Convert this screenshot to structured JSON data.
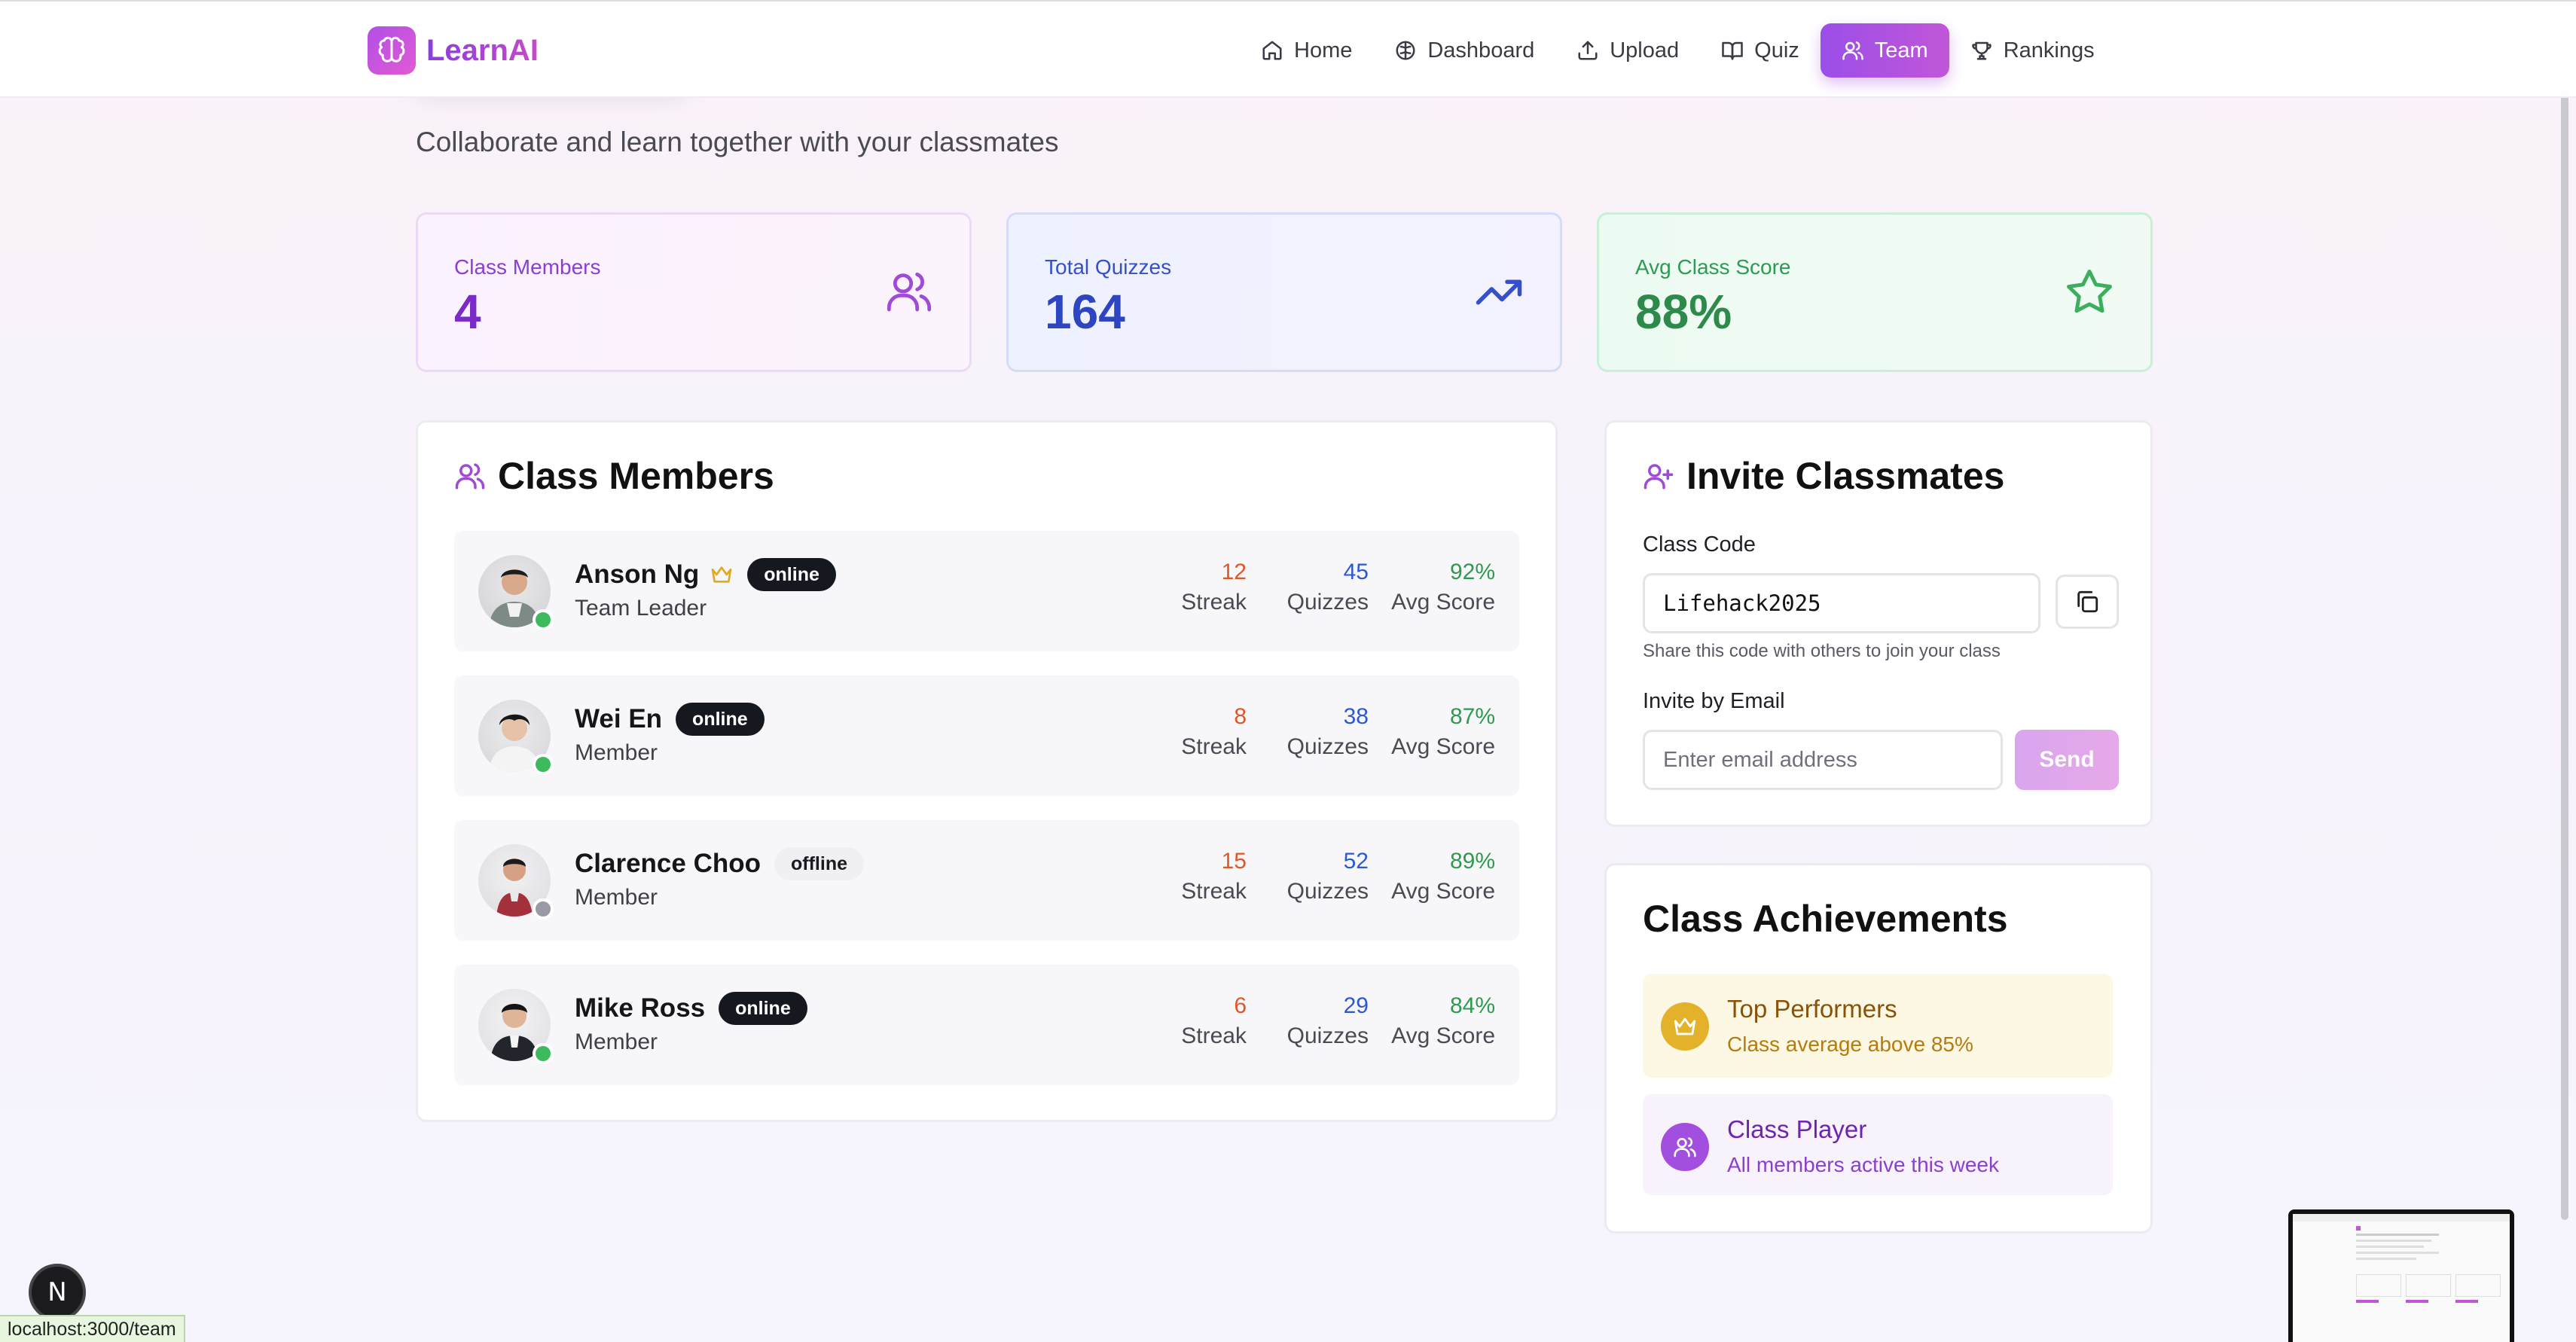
{
  "nav": {
    "brand": "LearnAI",
    "links": [
      {
        "label": "Home",
        "icon": "home-icon"
      },
      {
        "label": "Dashboard",
        "icon": "brain-icon"
      },
      {
        "label": "Upload",
        "icon": "upload-icon"
      },
      {
        "label": "Quiz",
        "icon": "book-icon"
      },
      {
        "label": "Team",
        "icon": "users-icon",
        "active": true
      },
      {
        "label": "Rankings",
        "icon": "trophy-icon"
      }
    ]
  },
  "header": {
    "subtitle": "Collaborate and learn together with your classmates"
  },
  "stats": [
    {
      "label": "Class Members",
      "value": "4",
      "icon": "users-icon",
      "color": "#7a2cc8"
    },
    {
      "label": "Total Quizzes",
      "value": "164",
      "icon": "trending-up-icon",
      "color": "#2e45c2"
    },
    {
      "label": "Avg Class Score",
      "value": "88%",
      "icon": "star-icon",
      "color": "#2d8a4b"
    }
  ],
  "members_panel": {
    "title": "Class Members",
    "stat_labels": {
      "streak": "Streak",
      "quizzes": "Quizzes",
      "avg": "Avg Score"
    },
    "members": [
      {
        "name": "Anson Ng",
        "role": "Team Leader",
        "status": "online",
        "leader": true,
        "streak": "12",
        "quizzes": "45",
        "avg": "92%"
      },
      {
        "name": "Wei En",
        "role": "Member",
        "status": "online",
        "leader": false,
        "streak": "8",
        "quizzes": "38",
        "avg": "87%"
      },
      {
        "name": "Clarence Choo",
        "role": "Member",
        "status": "offline",
        "leader": false,
        "streak": "15",
        "quizzes": "52",
        "avg": "89%"
      },
      {
        "name": "Mike Ross",
        "role": "Member",
        "status": "online",
        "leader": false,
        "streak": "6",
        "quizzes": "29",
        "avg": "84%"
      }
    ]
  },
  "invite": {
    "title": "Invite Classmates",
    "code_label": "Class Code",
    "code_value": "Lifehack2025",
    "hint": "Share this code with others to join your class",
    "email_label": "Invite by Email",
    "email_placeholder": "Enter email address",
    "send_label": "Send"
  },
  "achievements": {
    "title": "Class Achievements",
    "items": [
      {
        "title": "Top Performers",
        "subtitle": "Class average above 85%",
        "icon": "crown-icon"
      },
      {
        "title": "Class Player",
        "subtitle": "All members active this week",
        "icon": "users-icon"
      }
    ]
  },
  "browser": {
    "status_url": "localhost:3000/team",
    "dev_badge": "N"
  },
  "colors": {
    "accent": "#9b4ee8",
    "online": "#3dbb5c",
    "offline": "#9a9aa6"
  }
}
